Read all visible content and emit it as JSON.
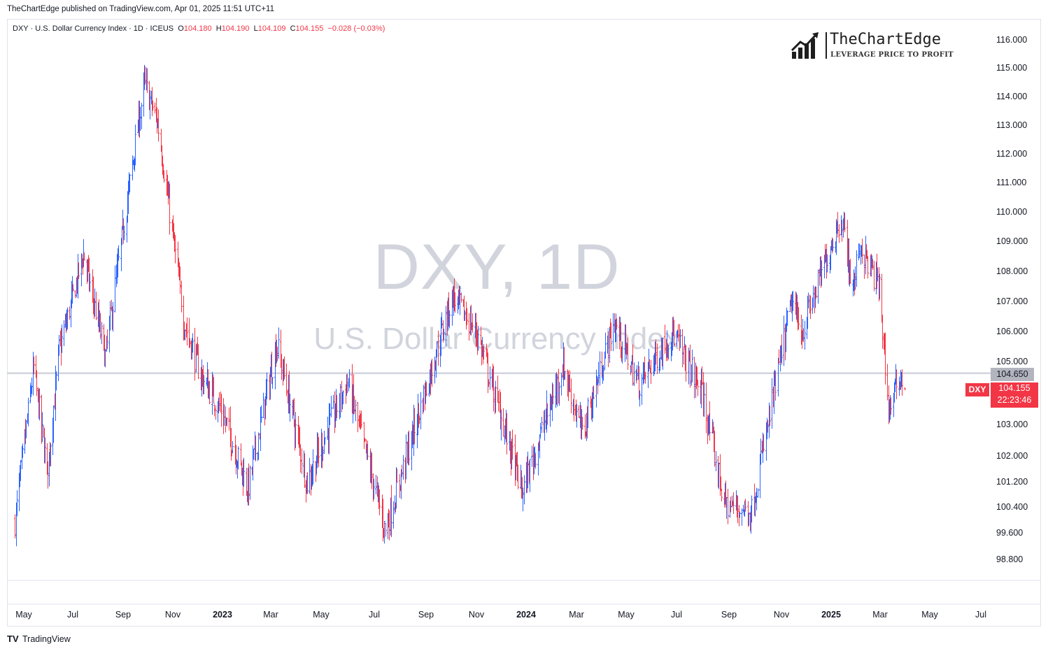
{
  "publisher_line": "TheChartEdge published on TradingView.com, Apr 01, 2025 11:51 UTC+11",
  "legend": {
    "symbol": "DXY",
    "name": "U.S. Dollar Currency Index",
    "interval": "1D",
    "exchange": "ICEUS",
    "open": "104.180",
    "high": "104.190",
    "low": "104.109",
    "close": "104.155",
    "change": "−0.028 (−0.03%)"
  },
  "brand": {
    "name": "TheChartEdge",
    "tagline": "LEVERAGE PRICE TO PROFIT"
  },
  "watermark": {
    "line1": "DXY, 1D",
    "line2": "U.S. Dollar Currency Index"
  },
  "price_tags": {
    "horizontal_line": "104.650",
    "symbol": "DXY",
    "last_price": "104.155",
    "countdown": "22:23:46"
  },
  "footer": {
    "logo": "TV",
    "text": "TradingView"
  },
  "colors": {
    "up": "#2962ff",
    "down": "#f23645",
    "hline": "#d1d4dc"
  },
  "chart_data": {
    "type": "ohlc",
    "interval": "1D",
    "y_axis_ticks": [
      "116.000",
      "115.000",
      "114.000",
      "113.000",
      "112.000",
      "111.000",
      "110.000",
      "109.000",
      "108.000",
      "107.000",
      "106.000",
      "105.000",
      "103.000",
      "102.000",
      "101.200",
      "100.400",
      "99.600",
      "98.800"
    ],
    "x_axis_ticks": [
      {
        "label": "May",
        "bold": false
      },
      {
        "label": "Jul",
        "bold": false
      },
      {
        "label": "Sep",
        "bold": false
      },
      {
        "label": "Nov",
        "bold": false
      },
      {
        "label": "2023",
        "bold": true
      },
      {
        "label": "Mar",
        "bold": false
      },
      {
        "label": "May",
        "bold": false
      },
      {
        "label": "Jul",
        "bold": false
      },
      {
        "label": "Sep",
        "bold": false
      },
      {
        "label": "Nov",
        "bold": false
      },
      {
        "label": "2024",
        "bold": true
      },
      {
        "label": "Mar",
        "bold": false
      },
      {
        "label": "May",
        "bold": false
      },
      {
        "label": "Jul",
        "bold": false
      },
      {
        "label": "Sep",
        "bold": false
      },
      {
        "label": "Nov",
        "bold": false
      },
      {
        "label": "2025",
        "bold": true
      },
      {
        "label": "Mar",
        "bold": false
      },
      {
        "label": "May",
        "bold": false
      },
      {
        "label": "Jul",
        "bold": false
      }
    ],
    "horizontal_line": 104.65,
    "last_close": 104.155,
    "anchors": [
      [
        "2022-04-20",
        100.0
      ],
      [
        "2022-05-13",
        104.8
      ],
      [
        "2022-05-30",
        101.5
      ],
      [
        "2022-06-14",
        105.4
      ],
      [
        "2022-07-14",
        108.6
      ],
      [
        "2022-08-10",
        105.2
      ],
      [
        "2022-09-27",
        114.5
      ],
      [
        "2022-10-13",
        113.1
      ],
      [
        "2022-11-15",
        106.3
      ],
      [
        "2022-12-05",
        104.6
      ],
      [
        "2022-12-30",
        103.5
      ],
      [
        "2023-02-01",
        101.0
      ],
      [
        "2023-03-08",
        105.6
      ],
      [
        "2023-04-14",
        101.2
      ],
      [
        "2023-05-31",
        104.4
      ],
      [
        "2023-06-22",
        102.0
      ],
      [
        "2023-07-14",
        99.7
      ],
      [
        "2023-09-01",
        104.2
      ],
      [
        "2023-10-03",
        107.2
      ],
      [
        "2023-11-01",
        106.0
      ],
      [
        "2023-12-27",
        100.9
      ],
      [
        "2024-02-14",
        104.9
      ],
      [
        "2024-03-08",
        102.7
      ],
      [
        "2024-04-16",
        106.3
      ],
      [
        "2024-05-16",
        104.3
      ],
      [
        "2024-06-26",
        106.0
      ],
      [
        "2024-07-31",
        104.0
      ],
      [
        "2024-08-27",
        100.5
      ],
      [
        "2024-09-27",
        100.3
      ],
      [
        "2024-11-13",
        107.0
      ],
      [
        "2024-11-26",
        106.0
      ],
      [
        "2025-01-13",
        109.9
      ],
      [
        "2025-01-27",
        107.4
      ],
      [
        "2025-02-04",
        108.9
      ],
      [
        "2025-02-28",
        107.5
      ],
      [
        "2025-03-11",
        103.5
      ],
      [
        "2025-03-26",
        104.6
      ],
      [
        "2025-03-31",
        104.155
      ]
    ]
  }
}
